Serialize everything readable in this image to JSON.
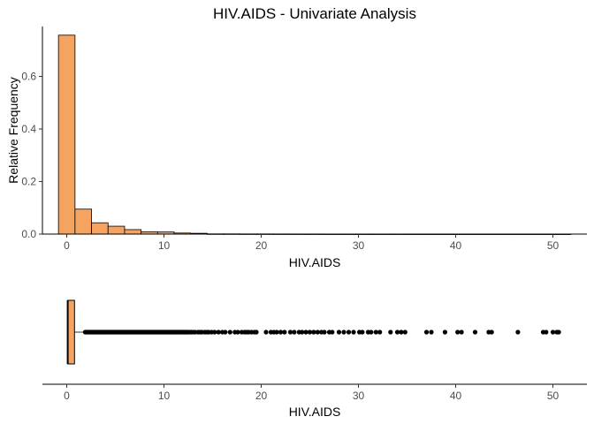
{
  "title": "HIV.AIDS - Univariate Analysis",
  "colors": {
    "fill": "#F4A460",
    "stroke": "#000000",
    "axis": "#000000",
    "tick_text": "#4d4d4d"
  },
  "chart_data": [
    {
      "type": "histogram",
      "title": "HIV.AIDS - Univariate Analysis",
      "xlabel": "HIV.AIDS",
      "ylabel": "Relative Frequency",
      "xlim": [
        -2.5,
        53.5
      ],
      "ylim": [
        0,
        0.79
      ],
      "xticks": [
        0,
        10,
        20,
        30,
        40,
        50
      ],
      "yticks": [
        0.0,
        0.2,
        0.4,
        0.6
      ],
      "ytick_labels": [
        "0.0",
        "0.2",
        "0.4",
        "0.6"
      ],
      "bin_width": 1.7,
      "bins": [
        {
          "x0": -0.85,
          "x1": 0.85,
          "value": 0.757
        },
        {
          "x0": 0.85,
          "x1": 2.55,
          "value": 0.095
        },
        {
          "x0": 2.55,
          "x1": 4.25,
          "value": 0.043
        },
        {
          "x0": 4.25,
          "x1": 5.95,
          "value": 0.03
        },
        {
          "x0": 5.95,
          "x1": 7.65,
          "value": 0.017
        },
        {
          "x0": 7.65,
          "x1": 9.35,
          "value": 0.009
        },
        {
          "x0": 9.35,
          "x1": 11.05,
          "value": 0.008
        },
        {
          "x0": 11.05,
          "x1": 12.75,
          "value": 0.004
        },
        {
          "x0": 12.75,
          "x1": 14.45,
          "value": 0.003
        },
        {
          "x0": 14.45,
          "x1": 16.15,
          "value": 0.0008
        },
        {
          "x0": 16.15,
          "x1": 17.85,
          "value": 0.0008
        },
        {
          "x0": 17.85,
          "x1": 19.55,
          "value": 0.0006
        },
        {
          "x0": 19.55,
          "x1": 21.25,
          "value": 0.0006
        },
        {
          "x0": 21.25,
          "x1": 22.95,
          "value": 0.0005
        },
        {
          "x0": 22.95,
          "x1": 24.65,
          "value": 0.0004
        },
        {
          "x0": 24.65,
          "x1": 26.35,
          "value": 0.0004
        },
        {
          "x0": 26.35,
          "x1": 28.05,
          "value": 0.0003
        },
        {
          "x0": 28.05,
          "x1": 29.75,
          "value": 0.0003
        },
        {
          "x0": 29.75,
          "x1": 31.45,
          "value": 0.0003
        },
        {
          "x0": 31.45,
          "x1": 33.15,
          "value": 0.0003
        },
        {
          "x0": 33.15,
          "x1": 34.85,
          "value": 0.0003
        },
        {
          "x0": 34.85,
          "x1": 36.55,
          "value": 0.0002
        },
        {
          "x0": 36.55,
          "x1": 38.25,
          "value": 0.0002
        },
        {
          "x0": 38.25,
          "x1": 39.95,
          "value": 0.0002
        },
        {
          "x0": 39.95,
          "x1": 41.65,
          "value": 0.0002
        },
        {
          "x0": 41.65,
          "x1": 43.35,
          "value": 0.0002
        },
        {
          "x0": 43.35,
          "x1": 45.05,
          "value": 0.0002
        },
        {
          "x0": 45.05,
          "x1": 46.75,
          "value": 0.0002
        },
        {
          "x0": 46.75,
          "x1": 48.45,
          "value": 0.0002
        },
        {
          "x0": 48.45,
          "x1": 50.15,
          "value": 0.0002
        },
        {
          "x0": 50.15,
          "x1": 51.85,
          "value": 0.0002
        }
      ]
    },
    {
      "type": "boxplot",
      "xlabel": "HIV.AIDS",
      "xlim": [
        -2.5,
        53.5
      ],
      "xticks": [
        0,
        10,
        20,
        30,
        40,
        50
      ],
      "min": 0.1,
      "q1": 0.1,
      "median": 0.1,
      "q3": 0.8,
      "whisker_high": 1.8,
      "outliers": [
        1.9,
        2.0,
        2.1,
        2.2,
        2.3,
        2.4,
        2.5,
        2.6,
        2.7,
        2.8,
        2.9,
        3.0,
        3.1,
        3.2,
        3.3,
        3.4,
        3.5,
        3.6,
        3.7,
        3.8,
        3.9,
        4.0,
        4.1,
        4.2,
        4.3,
        4.4,
        4.5,
        4.6,
        4.7,
        4.8,
        4.9,
        5.0,
        5.1,
        5.2,
        5.3,
        5.4,
        5.5,
        5.6,
        5.7,
        5.8,
        5.9,
        6.0,
        6.1,
        6.2,
        6.3,
        6.4,
        6.5,
        6.6,
        6.7,
        6.8,
        6.9,
        7.0,
        7.1,
        7.2,
        7.3,
        7.4,
        7.5,
        7.6,
        7.7,
        7.8,
        7.9,
        8.0,
        8.1,
        8.2,
        8.3,
        8.4,
        8.5,
        8.6,
        8.7,
        8.8,
        8.9,
        9.0,
        9.1,
        9.2,
        9.3,
        9.4,
        9.5,
        9.6,
        9.7,
        9.8,
        9.9,
        10.0,
        10.1,
        10.2,
        10.3,
        10.4,
        10.5,
        10.6,
        10.7,
        10.8,
        10.9,
        11.0,
        11.1,
        11.2,
        11.3,
        11.4,
        11.5,
        11.6,
        11.7,
        11.8,
        11.9,
        12.0,
        12.1,
        12.2,
        12.3,
        12.4,
        12.5,
        12.6,
        12.8,
        13.0,
        13.2,
        13.5,
        13.7,
        13.9,
        14.2,
        14.4,
        14.6,
        14.9,
        15.2,
        15.6,
        16.0,
        16.3,
        16.8,
        17.3,
        17.6,
        18.0,
        18.3,
        18.5,
        18.7,
        19.0,
        19.3,
        19.5,
        20.5,
        21.0,
        21.3,
        21.6,
        22.0,
        22.4,
        23.0,
        23.4,
        23.9,
        24.2,
        24.6,
        25.0,
        25.4,
        25.8,
        26.2,
        26.5,
        27.0,
        27.3,
        28.0,
        28.5,
        29.0,
        29.5,
        30.1,
        30.4,
        31.0,
        31.3,
        31.8,
        32.2,
        33.3,
        34.0,
        34.4,
        34.8,
        37.0,
        37.5,
        38.9,
        40.2,
        40.6,
        42.0,
        43.4,
        43.7,
        46.4,
        49.0,
        49.3,
        50.0,
        50.4,
        50.6
      ]
    }
  ]
}
